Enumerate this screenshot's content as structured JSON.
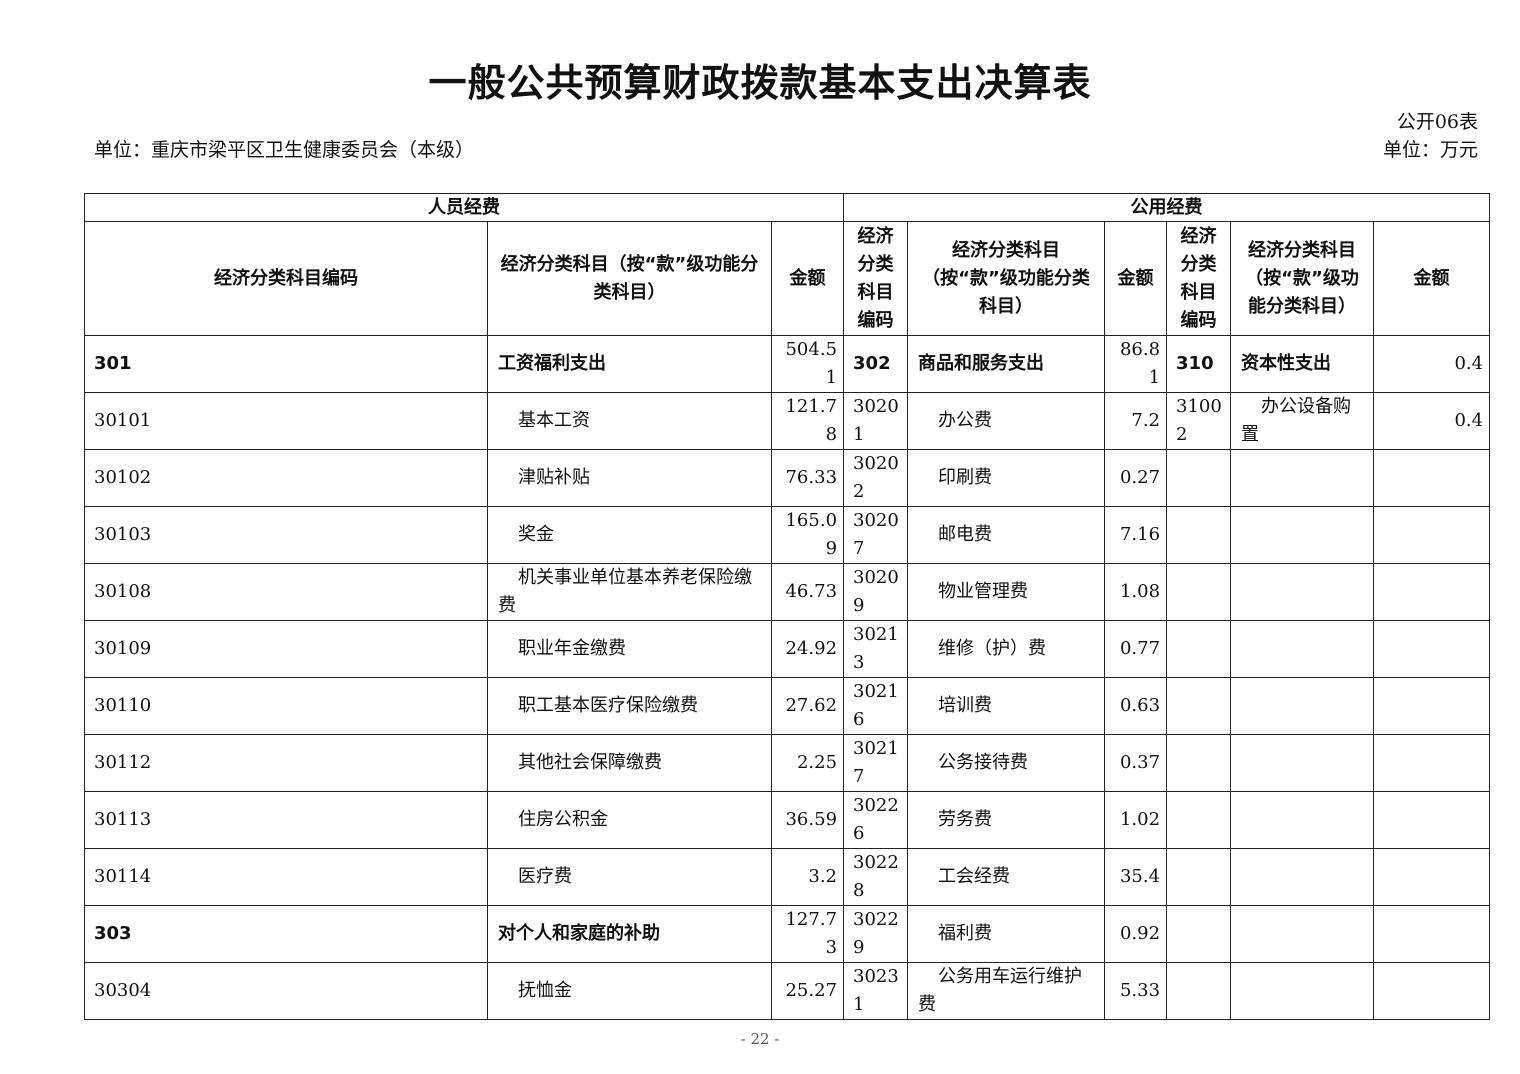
{
  "title": "一般公共预算财政拨款基本支出决算表",
  "form_no": "公开06表",
  "unit_org": "单位：重庆市梁平区卫生健康委员会（本级）",
  "unit_currency": "单位：万元",
  "groups": {
    "personnel": "人员经费",
    "public": "公用经费"
  },
  "headers": {
    "code": "经济分类科目编码",
    "name": "经济分类科目（按“款”级功能分类科目）",
    "amount": "金额",
    "code_short": "经济分类科目编码",
    "name_mid": "经济分类科目（按“款”级功能分类科目）",
    "name_right": "经济分类科目（按“款”级功能分类科目）"
  },
  "rows": [
    {
      "l": {
        "code": "301",
        "name": "工资福利支出",
        "amount": "504.51",
        "bold": true
      },
      "m": {
        "code": "302",
        "name": "商品和服务支出",
        "amount": "86.81",
        "bold": true
      },
      "r": {
        "code": "310",
        "name": "资本性支出",
        "amount": "0.4",
        "bold": true
      }
    },
    {
      "l": {
        "code": "30101",
        "name": "基本工资",
        "amount": "121.78"
      },
      "m": {
        "code": "30201",
        "name": "办公费",
        "amount": "7.2"
      },
      "r": {
        "code": "31002",
        "name": "办公设备购置",
        "amount": "0.4"
      }
    },
    {
      "l": {
        "code": "30102",
        "name": "津贴补贴",
        "amount": "76.33"
      },
      "m": {
        "code": "30202",
        "name": "印刷费",
        "amount": "0.27"
      },
      "r": {
        "code": "",
        "name": "",
        "amount": ""
      }
    },
    {
      "l": {
        "code": "30103",
        "name": "奖金",
        "amount": "165.09"
      },
      "m": {
        "code": "30207",
        "name": "邮电费",
        "amount": "7.16"
      },
      "r": {
        "code": "",
        "name": "",
        "amount": ""
      }
    },
    {
      "l": {
        "code": "30108",
        "name": "机关事业单位基本养老保险缴费",
        "amount": "46.73"
      },
      "m": {
        "code": "30209",
        "name": "物业管理费",
        "amount": "1.08"
      },
      "r": {
        "code": "",
        "name": "",
        "amount": ""
      }
    },
    {
      "l": {
        "code": "30109",
        "name": "职业年金缴费",
        "amount": "24.92"
      },
      "m": {
        "code": "30213",
        "name": "维修（护）费",
        "amount": "0.77"
      },
      "r": {
        "code": "",
        "name": "",
        "amount": ""
      }
    },
    {
      "l": {
        "code": "30110",
        "name": "职工基本医疗保险缴费",
        "amount": "27.62"
      },
      "m": {
        "code": "30216",
        "name": "培训费",
        "amount": "0.63"
      },
      "r": {
        "code": "",
        "name": "",
        "amount": ""
      }
    },
    {
      "l": {
        "code": "30112",
        "name": "其他社会保障缴费",
        "amount": "2.25"
      },
      "m": {
        "code": "30217",
        "name": "公务接待费",
        "amount": "0.37"
      },
      "r": {
        "code": "",
        "name": "",
        "amount": ""
      }
    },
    {
      "l": {
        "code": "30113",
        "name": "住房公积金",
        "amount": "36.59"
      },
      "m": {
        "code": "30226",
        "name": "劳务费",
        "amount": "1.02"
      },
      "r": {
        "code": "",
        "name": "",
        "amount": ""
      }
    },
    {
      "l": {
        "code": "30114",
        "name": "医疗费",
        "amount": "3.2"
      },
      "m": {
        "code": "30228",
        "name": "工会经费",
        "amount": "35.4"
      },
      "r": {
        "code": "",
        "name": "",
        "amount": ""
      }
    },
    {
      "l": {
        "code": "303",
        "name": "对个人和家庭的补助",
        "amount": "127.73",
        "bold": true
      },
      "m": {
        "code": "30229",
        "name": "福利费",
        "amount": "0.92"
      },
      "r": {
        "code": "",
        "name": "",
        "amount": ""
      }
    },
    {
      "l": {
        "code": "30304",
        "name": "抚恤金",
        "amount": "25.27"
      },
      "m": {
        "code": "30231",
        "name": "公务用车运行维护费",
        "amount": "5.33"
      },
      "r": {
        "code": "",
        "name": "",
        "amount": ""
      }
    }
  ],
  "page_number": "- 22 -"
}
